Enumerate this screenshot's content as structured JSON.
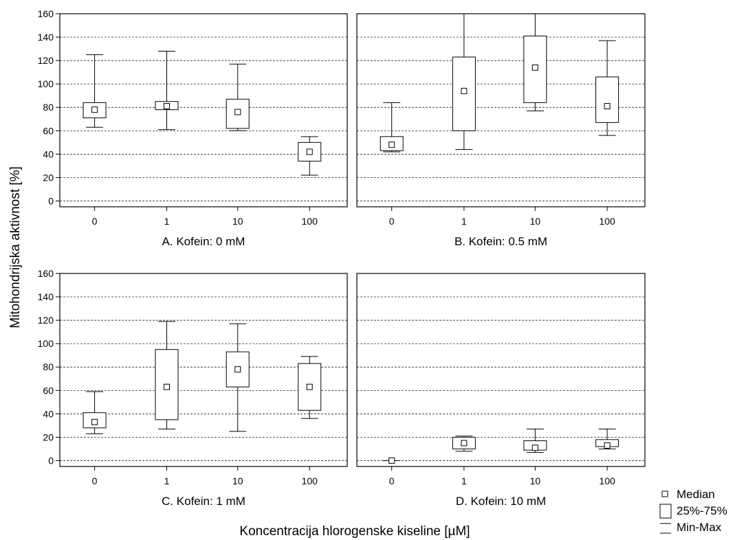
{
  "chart_data": {
    "type": "box",
    "ylabel": "Mitohondrijska aktivnost [%]",
    "xlabel": "Koncentracija hlorogenske kiseline [µM]",
    "ylim": [
      -5,
      160
    ],
    "yticks": [
      0,
      20,
      40,
      60,
      80,
      100,
      120,
      140,
      160
    ],
    "categories": [
      "0",
      "1",
      "10",
      "100"
    ],
    "grid": true,
    "legend": {
      "placement": "bottom-right",
      "entries": [
        {
          "label": "Median",
          "kind": "median"
        },
        {
          "label": "25%-75%",
          "kind": "box"
        },
        {
          "label": "Min-Max",
          "kind": "whisker"
        }
      ]
    },
    "panels": [
      {
        "title": "A. Kofein: 0 mM",
        "boxes": [
          {
            "category": "0",
            "min": 63,
            "q1": 71,
            "median": 78,
            "q3": 84,
            "max": 125
          },
          {
            "category": "1",
            "min": 61,
            "q1": 78,
            "median": 81,
            "q3": 85,
            "max": 128
          },
          {
            "category": "10",
            "min": 60,
            "q1": 62,
            "median": 76,
            "q3": 87,
            "max": 117
          },
          {
            "category": "100",
            "min": 22,
            "q1": 34,
            "median": 42,
            "q3": 50,
            "max": 55
          }
        ]
      },
      {
        "title": "B. Kofein: 0.5 mM",
        "boxes": [
          {
            "category": "0",
            "min": 42,
            "q1": 43,
            "median": 48,
            "q3": 55,
            "max": 84
          },
          {
            "category": "1",
            "min": 44,
            "q1": 60,
            "median": 94,
            "q3": 123,
            "max": 160
          },
          {
            "category": "10",
            "min": 77,
            "q1": 84,
            "median": 114,
            "q3": 141,
            "max": 160
          },
          {
            "category": "100",
            "min": 56,
            "q1": 67,
            "median": 81,
            "q3": 106,
            "max": 137
          }
        ]
      },
      {
        "title": "C. Kofein: 1 mM",
        "boxes": [
          {
            "category": "0",
            "min": 23,
            "q1": 28,
            "median": 33,
            "q3": 41,
            "max": 59
          },
          {
            "category": "1",
            "min": 27,
            "q1": 35,
            "median": 63,
            "q3": 95,
            "max": 119
          },
          {
            "category": "10",
            "min": 25,
            "q1": 63,
            "median": 78,
            "q3": 93,
            "max": 117
          },
          {
            "category": "100",
            "min": 36,
            "q1": 43,
            "median": 63,
            "q3": 83,
            "max": 89
          }
        ]
      },
      {
        "title": "D. Kofein: 10 mM",
        "boxes": [
          {
            "category": "0",
            "min": 0,
            "q1": 0,
            "median": 0,
            "q3": 0,
            "max": 0
          },
          {
            "category": "1",
            "min": 8,
            "q1": 10,
            "median": 15,
            "q3": 20,
            "max": 21
          },
          {
            "category": "10",
            "min": 7,
            "q1": 9,
            "median": 11,
            "q3": 17,
            "max": 27
          },
          {
            "category": "100",
            "min": 10,
            "q1": 12,
            "median": 13,
            "q3": 18,
            "max": 27
          }
        ]
      }
    ]
  }
}
